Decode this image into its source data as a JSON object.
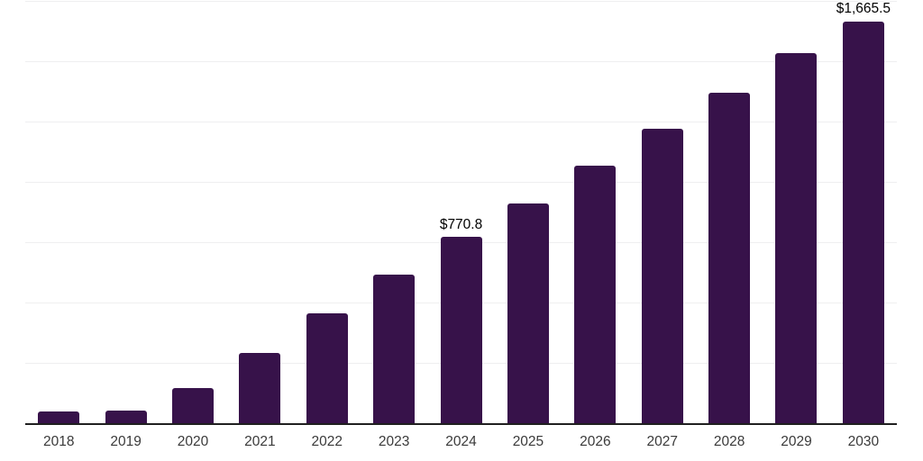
{
  "chart_data": {
    "type": "bar",
    "title": "",
    "xlabel": "",
    "ylabel": "",
    "categories": [
      "2018",
      "2019",
      "2020",
      "2021",
      "2022",
      "2023",
      "2024",
      "2025",
      "2026",
      "2027",
      "2028",
      "2029",
      "2030"
    ],
    "values": [
      47,
      52,
      146,
      292,
      457,
      617,
      770.8,
      909,
      1066,
      1222,
      1371,
      1535,
      1665.5
    ],
    "ylim": [
      0,
      1750
    ],
    "gridline_interval": 250,
    "grid": true,
    "legend": false,
    "data_labels": [
      {
        "category": "2024",
        "text": "$770.8"
      },
      {
        "category": "2030",
        "text": "$1,665.5"
      }
    ]
  },
  "colors": {
    "background": "#ffffff",
    "bar": "#37124A",
    "gridline": "#efeff0",
    "axis_line": "#202020",
    "tick_label": "#3a3a3a",
    "data_label": "#000000"
  }
}
